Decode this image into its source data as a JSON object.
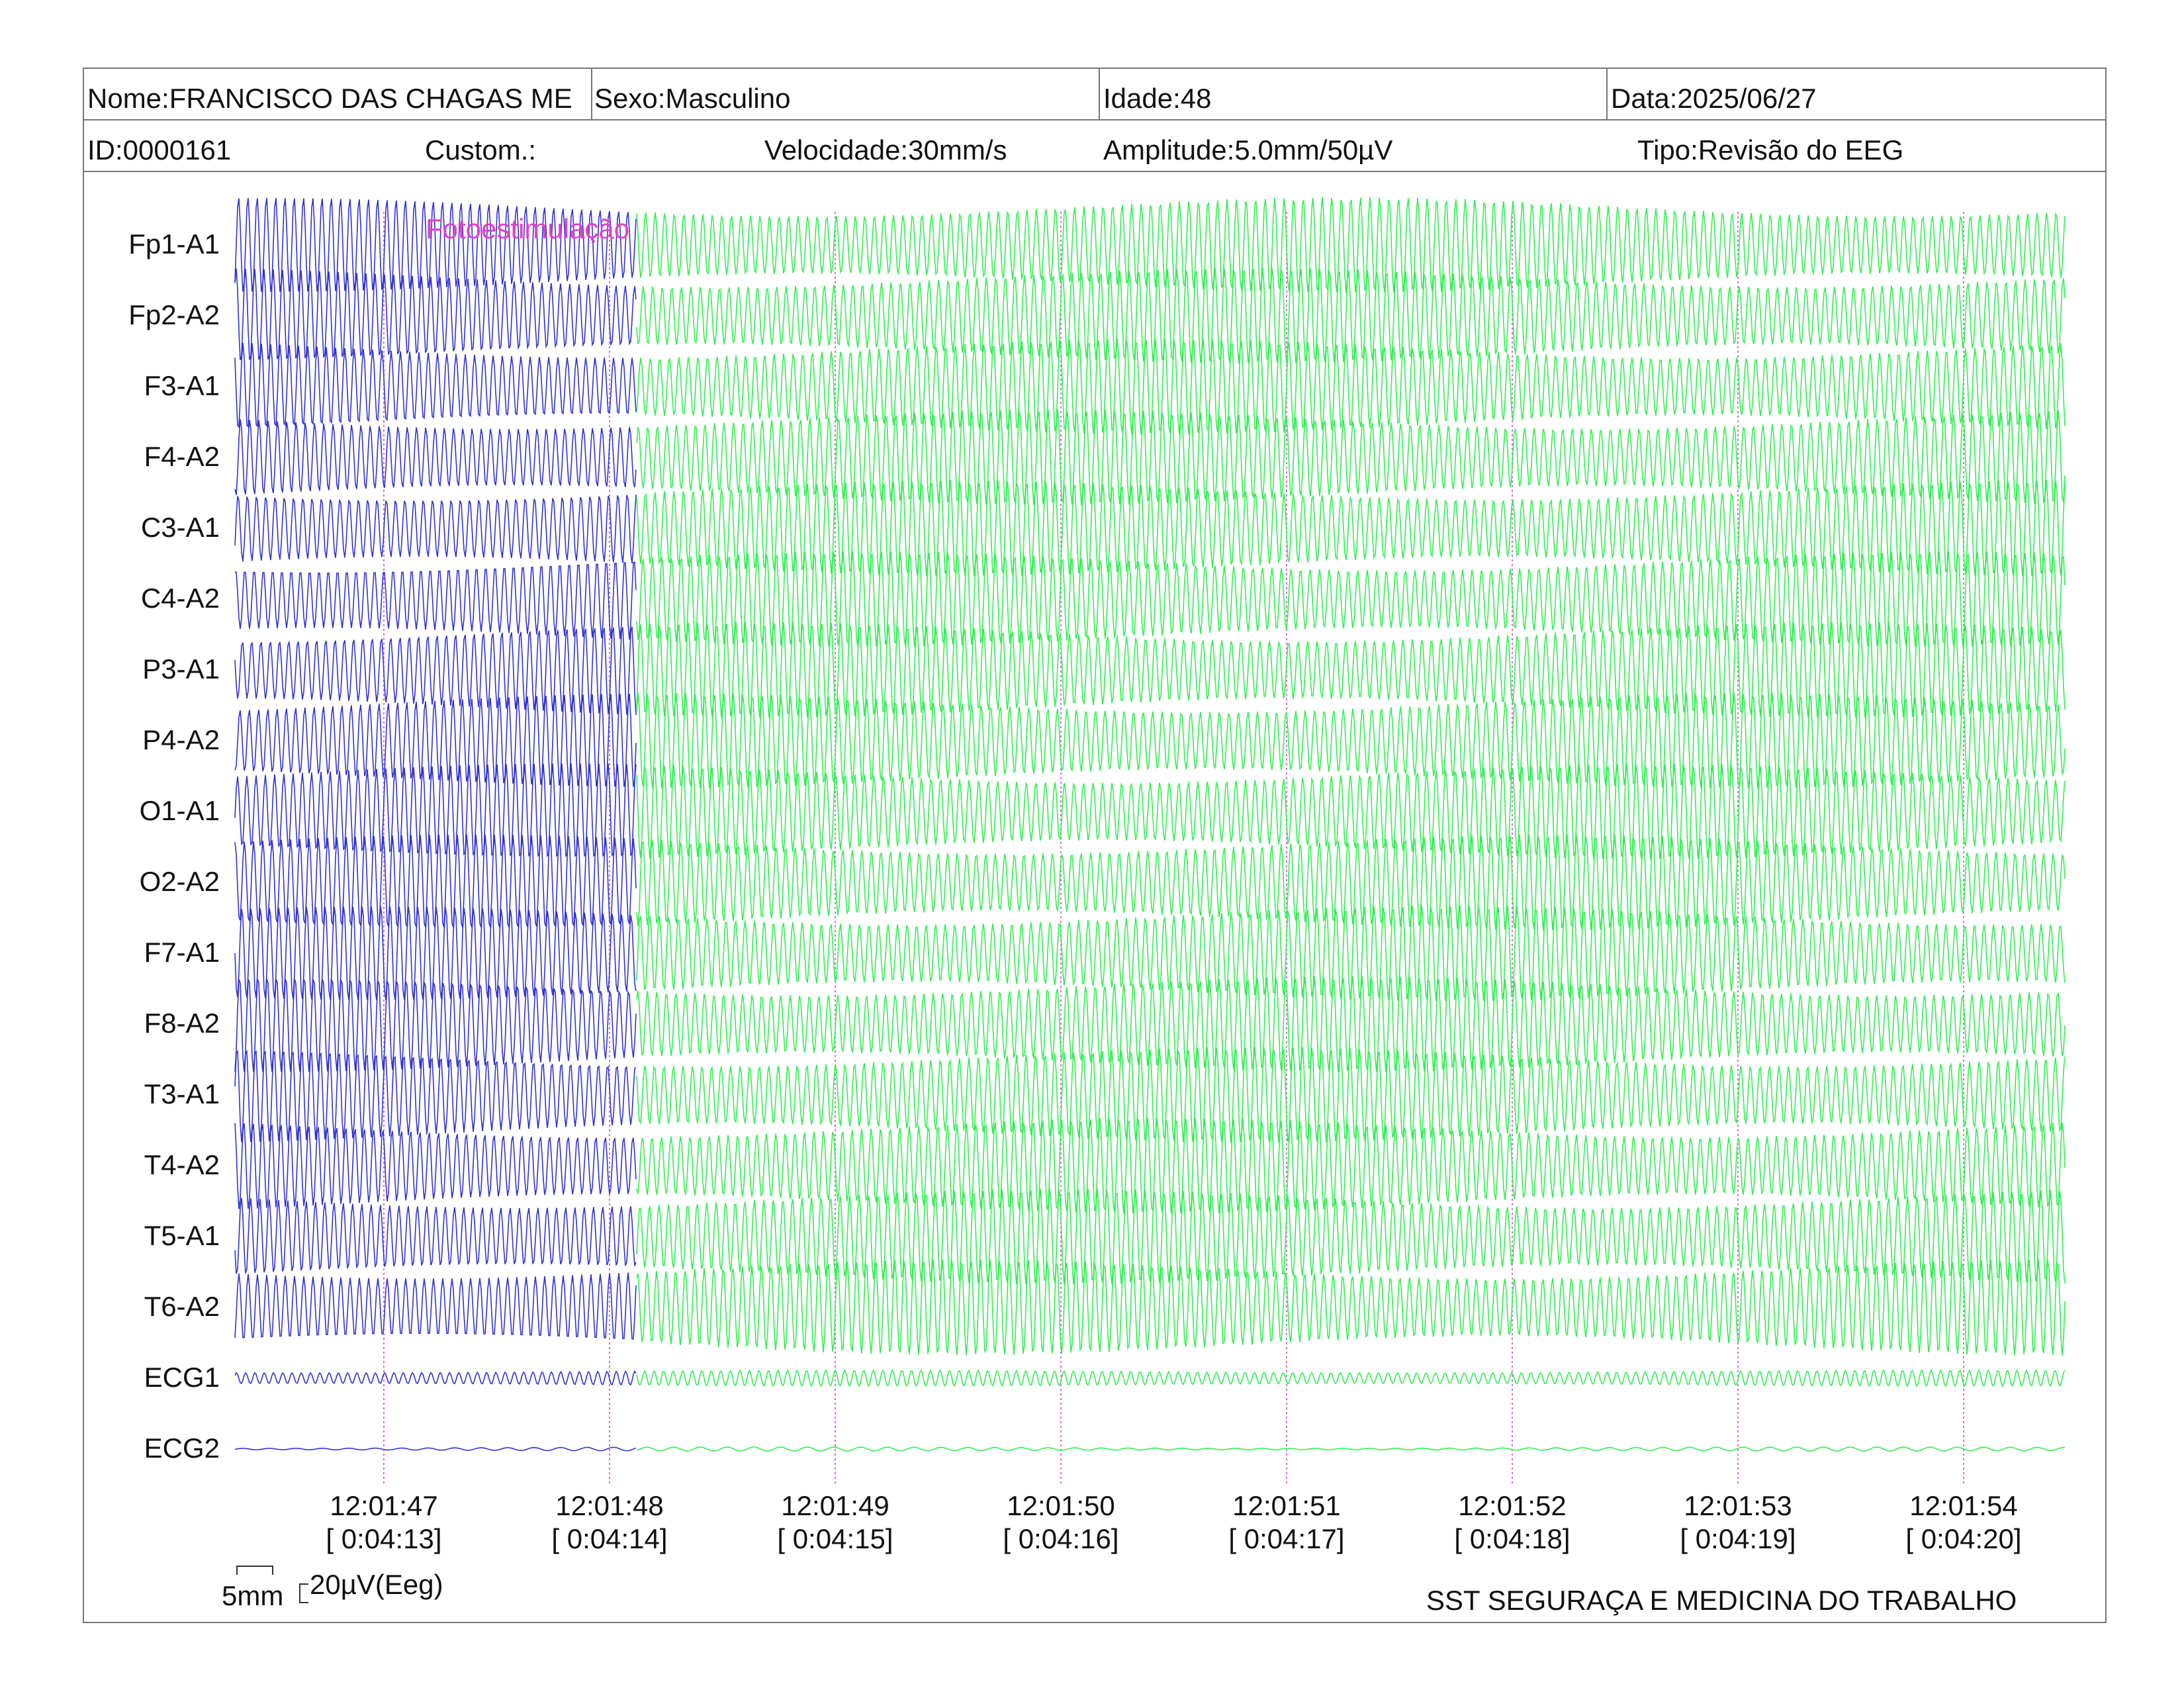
{
  "header": {
    "nome": "Nome:FRANCISCO DAS CHAGAS ME",
    "sexo": "Sexo:Masculino",
    "idade": "Idade:48",
    "data": "Data:2025/06/27",
    "id": "ID:0000161",
    "custom": "Custom.:",
    "velocidade": "Velocidade:30mm/s",
    "amplitude": "Amplitude:5.0mm/50µV",
    "tipo": "Tipo:Revisão do EEG"
  },
  "annotation": {
    "label": "Fotoestimulação",
    "color": "#e040c8"
  },
  "chart_data": {
    "type": "line",
    "channels": [
      "Fp1-A1",
      "Fp2-A2",
      "F3-A1",
      "F4-A2",
      "C3-A1",
      "C4-A2",
      "P3-A1",
      "P4-A2",
      "O1-A1",
      "O2-A2",
      "F7-A1",
      "F8-A2",
      "T3-A1",
      "T4-A2",
      "T5-A1",
      "T6-A2",
      "ECG1",
      "ECG2"
    ],
    "time_ticks": [
      {
        "clock": "12:01:47",
        "elapsed": "[ 0:04:13]"
      },
      {
        "clock": "12:01:48",
        "elapsed": "[ 0:04:14]"
      },
      {
        "clock": "12:01:49",
        "elapsed": "[ 0:04:15]"
      },
      {
        "clock": "12:01:50",
        "elapsed": "[ 0:04:16]"
      },
      {
        "clock": "12:01:51",
        "elapsed": "[ 0:04:17]"
      },
      {
        "clock": "12:01:52",
        "elapsed": "[ 0:04:18]"
      },
      {
        "clock": "12:01:53",
        "elapsed": "[ 0:04:19]"
      },
      {
        "clock": "12:01:54",
        "elapsed": "[ 0:04:20]"
      }
    ],
    "series": [
      {
        "segment": "before stimulation",
        "color": "#3232d2"
      },
      {
        "segment": "after stimulation",
        "color": "#33ee55"
      }
    ],
    "tick_line_color": "#d46ad4"
  },
  "footer": {
    "scale_time": "5mm",
    "scale_amp": "20µV(Eeg)",
    "institution": "SST SEGURAÇA E MEDICINA DO TRABALHO"
  }
}
